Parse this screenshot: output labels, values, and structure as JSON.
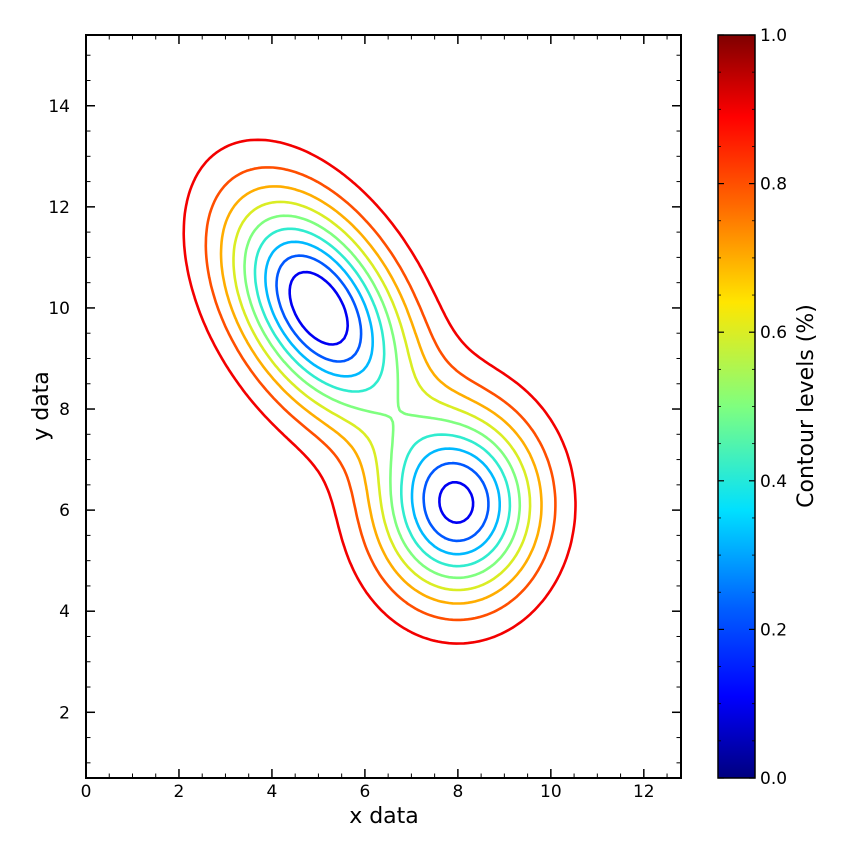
{
  "chart_data": {
    "type": "contour",
    "title": "",
    "xlabel": "x data",
    "ylabel": "y data",
    "xlim": [
      0,
      12.8
    ],
    "ylim": [
      0.7,
      15.4
    ],
    "xticks": [
      0,
      2,
      4,
      6,
      8,
      10,
      12
    ],
    "xtick_labels": [
      "0",
      "2",
      "4",
      "6",
      "8",
      "10",
      "12"
    ],
    "yticks": [
      2,
      4,
      6,
      8,
      10,
      12,
      14
    ],
    "ytick_labels": [
      "2",
      "4",
      "6",
      "8",
      "10",
      "12",
      "14"
    ],
    "grid": false,
    "colormap": "jet",
    "colorbar": {
      "label": "Contour levels (%)",
      "range": [
        0,
        1
      ],
      "ticks": [
        0,
        0.2,
        0.4,
        0.6,
        0.8,
        1.0
      ],
      "tick_labels": [
        "0.0",
        "0.2",
        "0.4",
        "0.6",
        "0.8",
        "1.0"
      ],
      "stops": [
        "#00007f",
        "#0000ff",
        "#007fff",
        "#00ffff",
        "#7fff7f",
        "#ffff00",
        "#ff7f00",
        "#ff0000",
        "#7f0000"
      ]
    },
    "levels": [
      0.1,
      0.2,
      0.3,
      0.4,
      0.5,
      0.6,
      0.7,
      0.8,
      0.9
    ],
    "peaks": [
      {
        "x": 5.0,
        "y": 10.0
      },
      {
        "x": 8.0,
        "y": 6.1
      }
    ]
  }
}
